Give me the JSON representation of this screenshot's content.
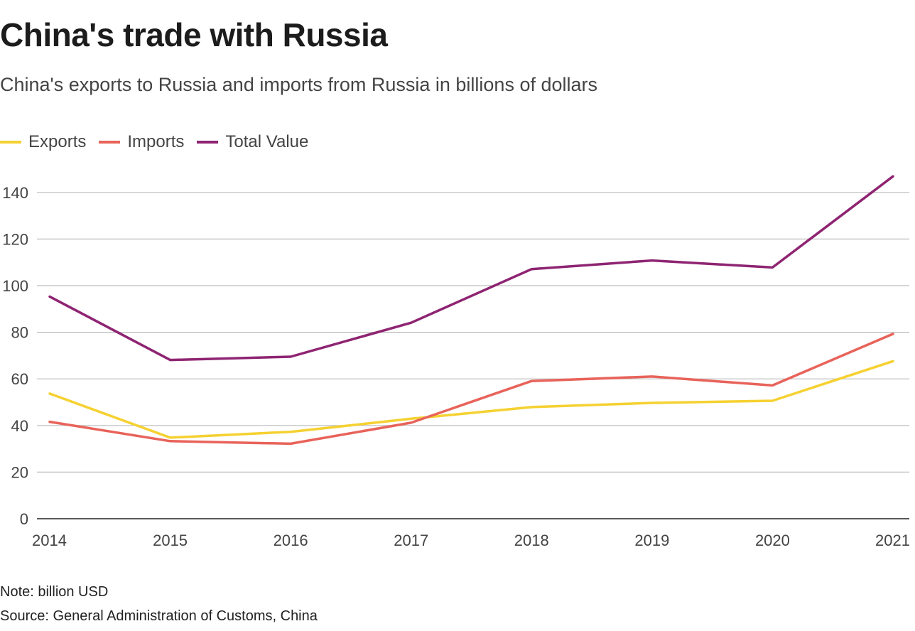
{
  "chart_data": {
    "type": "line",
    "title": "China's trade with Russia",
    "subtitle": "China's exports to Russia and imports from Russia in billions of dollars",
    "x": [
      "2014",
      "2015",
      "2016",
      "2017",
      "2018",
      "2019",
      "2020",
      "2021"
    ],
    "series": [
      {
        "name": "Exports",
        "color": "#f5d131",
        "values": [
          53.7,
          34.8,
          37.3,
          42.9,
          47.9,
          49.7,
          50.6,
          67.6
        ]
      },
      {
        "name": "Imports",
        "color": "#e8635a",
        "values": [
          41.6,
          33.3,
          32.2,
          41.2,
          59.1,
          61.0,
          57.2,
          79.3
        ]
      },
      {
        "name": "Total Value",
        "color": "#8e2472",
        "values": [
          95.3,
          68.1,
          69.5,
          84.1,
          107.1,
          110.8,
          107.8,
          146.9
        ]
      }
    ],
    "yticks": [
      0,
      20,
      40,
      60,
      80,
      100,
      120,
      140
    ],
    "ylim": [
      0,
      150
    ],
    "grid": true,
    "legend_position": "top-left",
    "note": "Note: billion USD",
    "source": "Source: General Administration of Customs, China"
  }
}
